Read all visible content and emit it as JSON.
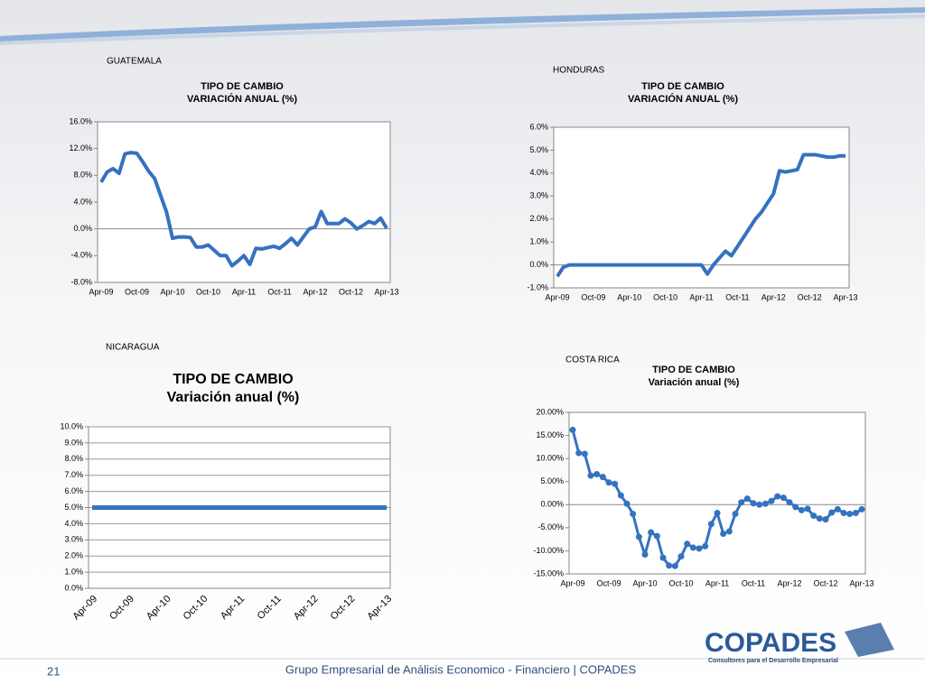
{
  "chart_data": [
    {
      "type": "line",
      "heading": "GUATEMALA",
      "title": "TIPO DE CAMBIO",
      "subtitle": "VARIACIÓN ANUAL (%)",
      "color": "#3572c0",
      "grid": false,
      "markers": false,
      "rotate_xlabels": false,
      "categories": [
        "Apr-09",
        null,
        null,
        null,
        null,
        null,
        "Oct-09",
        null,
        null,
        null,
        null,
        null,
        "Apr-10",
        null,
        null,
        null,
        null,
        null,
        "Oct-10",
        null,
        null,
        null,
        null,
        null,
        "Apr-11",
        null,
        null,
        null,
        null,
        null,
        "Oct-11",
        null,
        null,
        null,
        null,
        null,
        "Apr-12",
        null,
        null,
        null,
        null,
        null,
        "Oct-12",
        null,
        null,
        null,
        null,
        null,
        "Apr-13"
      ],
      "values": [
        7.0,
        8.5,
        9.0,
        8.3,
        11.2,
        11.4,
        11.3,
        10.0,
        8.6,
        7.5,
        5.0,
        2.5,
        -1.4,
        -1.2,
        -1.2,
        -1.3,
        -2.7,
        -2.7,
        -2.4,
        -3.2,
        -4.0,
        -4.0,
        -5.5,
        -4.8,
        -4.0,
        -5.3,
        -2.9,
        -3.0,
        -2.8,
        -2.6,
        -2.9,
        -2.2,
        -1.4,
        -2.4,
        -1.2,
        0.0,
        0.3,
        2.6,
        0.8,
        0.8,
        0.8,
        1.5,
        0.9,
        0.0,
        0.5,
        1.1,
        0.8,
        1.6,
        0.1
      ],
      "ylim": [
        -8,
        16
      ],
      "yticks": [
        {
          "value": -8,
          "label": "-8.0%"
        },
        {
          "value": -4,
          "label": "-4.0%"
        },
        {
          "value": 0,
          "label": "0.0%"
        },
        {
          "value": 4,
          "label": "4.0%"
        },
        {
          "value": 8,
          "label": "8.0%"
        },
        {
          "value": 12,
          "label": "12.0%"
        },
        {
          "value": 16,
          "label": "16.0%"
        }
      ]
    },
    {
      "type": "line",
      "heading": "HONDURAS",
      "title": "TIPO DE CAMBIO",
      "subtitle": "VARIACIÓN ANUAL (%)",
      "color": "#3572c0",
      "grid": false,
      "markers": false,
      "rotate_xlabels": false,
      "categories": [
        "Apr-09",
        null,
        null,
        null,
        null,
        null,
        "Oct-09",
        null,
        null,
        null,
        null,
        null,
        "Apr-10",
        null,
        null,
        null,
        null,
        null,
        "Oct-10",
        null,
        null,
        null,
        null,
        null,
        "Apr-11",
        null,
        null,
        null,
        null,
        null,
        "Oct-11",
        null,
        null,
        null,
        null,
        null,
        "Apr-12",
        null,
        null,
        null,
        null,
        null,
        "Oct-12",
        null,
        null,
        null,
        null,
        null,
        "Apr-13"
      ],
      "values": [
        -0.5,
        -0.1,
        0,
        0,
        0,
        0,
        0,
        0,
        0,
        0,
        0,
        0,
        0,
        0,
        0,
        0,
        0,
        0,
        0,
        0,
        0,
        0,
        0,
        0,
        0,
        -0.4,
        0.0,
        0.3,
        0.6,
        0.4,
        0.8,
        1.2,
        1.6,
        2.0,
        2.3,
        2.7,
        3.1,
        4.1,
        4.05,
        4.1,
        4.15,
        4.8,
        4.8,
        4.8,
        4.75,
        4.7,
        4.7,
        4.75,
        4.75
      ],
      "ylim": [
        -1,
        6
      ],
      "yticks": [
        {
          "value": -1,
          "label": "-1.0%"
        },
        {
          "value": 0,
          "label": "0.0%"
        },
        {
          "value": 1,
          "label": "1.0%"
        },
        {
          "value": 2,
          "label": "2.0%"
        },
        {
          "value": 3,
          "label": "3.0%"
        },
        {
          "value": 4,
          "label": "4.0%"
        },
        {
          "value": 5,
          "label": "5.0%"
        },
        {
          "value": 6,
          "label": "6.0%"
        }
      ]
    },
    {
      "type": "line",
      "heading": "NICARAGUA",
      "title": "TIPO DE CAMBIO",
      "subtitle": "Variación anual (%)",
      "color": "#3572c0",
      "grid": true,
      "markers": false,
      "rotate_xlabels": true,
      "categories": [
        "Apr-09",
        null,
        null,
        null,
        null,
        null,
        "Oct-09",
        null,
        null,
        null,
        null,
        null,
        "Apr-10",
        null,
        null,
        null,
        null,
        null,
        "Oct-10",
        null,
        null,
        null,
        null,
        null,
        "Apr-11",
        null,
        null,
        null,
        null,
        null,
        "Oct-11",
        null,
        null,
        null,
        null,
        null,
        "Apr-12",
        null,
        null,
        null,
        null,
        null,
        "Oct-12",
        null,
        null,
        null,
        null,
        null,
        "Apr-13"
      ],
      "values": [
        5,
        5,
        5,
        5,
        5,
        5,
        5,
        5,
        5,
        5,
        5,
        5,
        5,
        5,
        5,
        5,
        5,
        5,
        5,
        5,
        5,
        5,
        5,
        5,
        5,
        5,
        5,
        5,
        5,
        5,
        5,
        5,
        5,
        5,
        5,
        5,
        5,
        5,
        5,
        5,
        5,
        5,
        5,
        5,
        5,
        5,
        5,
        5,
        5
      ],
      "ylim": [
        0,
        10
      ],
      "yticks": [
        {
          "value": 0,
          "label": "0.0%"
        },
        {
          "value": 1,
          "label": "1.0%"
        },
        {
          "value": 2,
          "label": "2.0%"
        },
        {
          "value": 3,
          "label": "3.0%"
        },
        {
          "value": 4,
          "label": "4.0%"
        },
        {
          "value": 5,
          "label": "5.0%"
        },
        {
          "value": 6,
          "label": "6.0%"
        },
        {
          "value": 7,
          "label": "7.0%"
        },
        {
          "value": 8,
          "label": "8.0%"
        },
        {
          "value": 9,
          "label": "9.0%"
        },
        {
          "value": 10,
          "label": "10.0%"
        }
      ]
    },
    {
      "type": "line",
      "heading": "COSTA RICA",
      "title": "TIPO DE CAMBIO",
      "subtitle": "Variación anual (%)",
      "color": "#3572c0",
      "grid": false,
      "markers": true,
      "rotate_xlabels": false,
      "categories": [
        "Apr-09",
        null,
        null,
        null,
        null,
        null,
        "Oct-09",
        null,
        null,
        null,
        null,
        null,
        "Apr-10",
        null,
        null,
        null,
        null,
        null,
        "Oct-10",
        null,
        null,
        null,
        null,
        null,
        "Apr-11",
        null,
        null,
        null,
        null,
        null,
        "Oct-11",
        null,
        null,
        null,
        null,
        null,
        "Apr-12",
        null,
        null,
        null,
        null,
        null,
        "Oct-12",
        null,
        null,
        null,
        null,
        null,
        "Apr-13"
      ],
      "values": [
        16.2,
        11.2,
        11.0,
        6.3,
        6.6,
        6.0,
        4.8,
        4.5,
        2.0,
        0.2,
        -2.0,
        -7.0,
        -10.8,
        -6.0,
        -6.8,
        -11.5,
        -13.2,
        -13.3,
        -11.2,
        -8.5,
        -9.3,
        -9.5,
        -9.0,
        -4.2,
        -1.8,
        -6.3,
        -5.8,
        -2.0,
        0.5,
        1.3,
        0.3,
        0.0,
        0.2,
        0.8,
        1.8,
        1.5,
        0.5,
        -0.5,
        -1.2,
        -0.9,
        -2.4,
        -3.0,
        -3.2,
        -1.7,
        -1.0,
        -1.8,
        -2.0,
        -1.8,
        -1.0
      ],
      "ylim": [
        -15,
        20
      ],
      "yticks": [
        {
          "value": -15,
          "label": "-15.00%"
        },
        {
          "value": -10,
          "label": "-10.00%"
        },
        {
          "value": -5,
          "label": "-5.00%"
        },
        {
          "value": 0,
          "label": "0.00%"
        },
        {
          "value": 5,
          "label": "5.00%"
        },
        {
          "value": 10,
          "label": "10.00%"
        },
        {
          "value": 15,
          "label": "15.00%"
        },
        {
          "value": 20,
          "label": "20.00%"
        }
      ]
    }
  ],
  "slide": {
    "number": "21",
    "footer": "Grupo Empresarial de Análisis Economico - Financiero | COPADES",
    "logo": "COPADES",
    "tagline": "Consultores para el Desarrollo Empresarial"
  }
}
